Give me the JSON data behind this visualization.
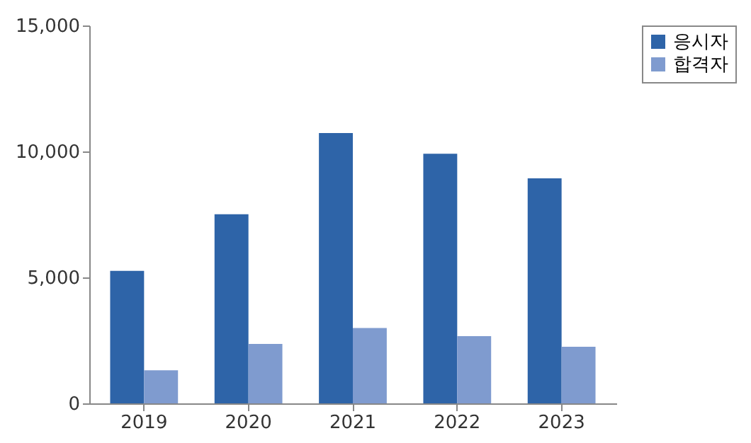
{
  "chart_data": {
    "type": "bar",
    "categories": [
      "2019",
      "2020",
      "2021",
      "2022",
      "2023"
    ],
    "series": [
      {
        "name": "응시자",
        "color": "#2e64a8",
        "values": [
          5260,
          7510,
          10730,
          9910,
          8930
        ]
      },
      {
        "name": "합격자",
        "color": "#7f9bcf",
        "values": [
          1310,
          2360,
          2990,
          2670,
          2250
        ]
      }
    ],
    "ylim": [
      0,
      15000
    ],
    "yticks": [
      0,
      {
        "value": 5000,
        "label": "5,000"
      },
      {
        "value": 10000,
        "label": "10,000"
      },
      {
        "value": 15000,
        "label": "15,000"
      }
    ],
    "grid": false,
    "legend": "right"
  }
}
